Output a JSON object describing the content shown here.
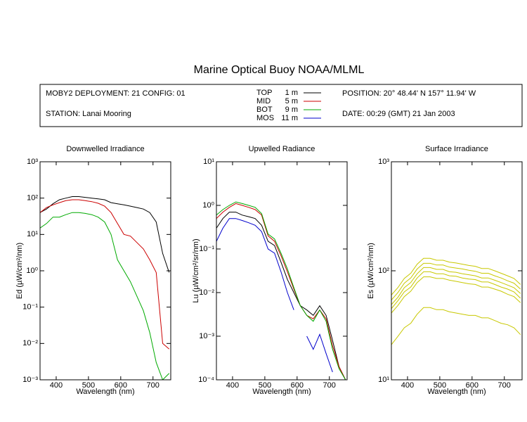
{
  "title": "Marine Optical Buoy NOAA/MLML",
  "info": {
    "deployment": "MOBY2 DEPLOYMENT: 21 CONFIG: 01",
    "station": "STATION: Lanai Mooring",
    "position": "POSITION: 20° 48.44' N   157° 11.94' W",
    "date": "DATE: 00:29 (GMT) 21 Jan 2003"
  },
  "legend": [
    {
      "name": "TOP",
      "depth": "1  m",
      "color": "#000000"
    },
    {
      "name": "MID",
      "depth": "5  m",
      "color": "#cc0000"
    },
    {
      "name": "BOT",
      "depth": "9  m",
      "color": "#00aa00"
    },
    {
      "name": "MOS",
      "depth": "11  m",
      "color": "#0000cc"
    }
  ],
  "chart_data": [
    {
      "type": "line",
      "title": "Downwelled Irradiance",
      "xlabel": "Wavelength (nm)",
      "ylabel": "Ed  (µW/cm²/nm)",
      "log_y": true,
      "xlim": [
        350,
        755
      ],
      "ylim": [
        0.001,
        1000
      ],
      "xticks": [
        400,
        500,
        600,
        700
      ],
      "yticks": [
        {
          "value": 0.001,
          "label": "10⁻³"
        },
        {
          "value": 0.01,
          "label": "10⁻²"
        },
        {
          "value": 0.1,
          "label": "10⁻¹"
        },
        {
          "value": 1,
          "label": "10⁰"
        },
        {
          "value": 10,
          "label": "10¹"
        },
        {
          "value": 100,
          "label": "10²"
        },
        {
          "value": 1000,
          "label": "10³"
        }
      ],
      "x": [
        350,
        370,
        390,
        410,
        430,
        450,
        470,
        490,
        510,
        530,
        550,
        570,
        590,
        610,
        630,
        650,
        670,
        690,
        710,
        730,
        750
      ],
      "series": [
        {
          "color": "#000000",
          "values": [
            40,
            50,
            70,
            90,
            100,
            110,
            110,
            105,
            100,
            95,
            90,
            75,
            70,
            65,
            60,
            55,
            50,
            40,
            22,
            3,
            0.9
          ]
        },
        {
          "color": "#cc0000",
          "values": [
            40,
            55,
            65,
            75,
            85,
            90,
            90,
            85,
            80,
            72,
            60,
            40,
            20,
            10,
            9,
            6,
            4,
            2,
            0.9,
            0.01,
            0.007
          ]
        },
        {
          "color": "#00aa00",
          "values": [
            15,
            20,
            30,
            30,
            35,
            40,
            40,
            38,
            35,
            30,
            22,
            10,
            2,
            1,
            0.5,
            0.2,
            0.08,
            0.02,
            0.003,
            0.001,
            0.0015
          ]
        }
      ]
    },
    {
      "type": "line",
      "title": "Upwelled Radiance",
      "xlabel": "Wavelength (nm)",
      "ylabel": "Lu  (µW/cm²/sr/nm)",
      "log_y": true,
      "xlim": [
        350,
        755
      ],
      "ylim": [
        0.0001,
        10
      ],
      "xticks": [
        400,
        500,
        600,
        700
      ],
      "yticks": [
        {
          "value": 0.0001,
          "label": "10⁻⁴"
        },
        {
          "value": 0.001,
          "label": "10⁻³"
        },
        {
          "value": 0.01,
          "label": "10⁻²"
        },
        {
          "value": 0.1,
          "label": "10⁻¹"
        },
        {
          "value": 1,
          "label": "10⁰"
        },
        {
          "value": 10,
          "label": "10¹"
        }
      ],
      "x": [
        350,
        370,
        390,
        410,
        430,
        450,
        470,
        490,
        510,
        530,
        550,
        570,
        590,
        610,
        630,
        650,
        670,
        690,
        710,
        730,
        750
      ],
      "series": [
        {
          "color": "#000000",
          "values": [
            0.3,
            0.5,
            0.7,
            0.7,
            0.6,
            0.55,
            0.5,
            0.35,
            0.15,
            0.12,
            0.05,
            0.02,
            0.01,
            0.005,
            0.004,
            0.003,
            0.005,
            0.003,
            0.0008,
            0.0002,
            0.0001
          ]
        },
        {
          "color": "#cc0000",
          "values": [
            0.5,
            0.7,
            0.9,
            1.1,
            1.0,
            0.9,
            0.8,
            0.6,
            0.2,
            0.15,
            0.07,
            0.03,
            0.012,
            0.005,
            0.003,
            0.0025,
            0.004,
            0.0025,
            0.0006,
            0.0002,
            0.0001
          ]
        },
        {
          "color": "#00aa00",
          "values": [
            0.6,
            0.8,
            1.0,
            1.2,
            1.1,
            1.0,
            0.9,
            0.65,
            0.22,
            0.17,
            0.08,
            0.035,
            0.013,
            0.005,
            0.003,
            0.0022,
            0.004,
            0.0022,
            0.0005,
            0.00018,
            0.0001
          ]
        },
        {
          "color": "#0000cc",
          "values": [
            0.15,
            0.3,
            0.5,
            0.5,
            0.45,
            0.4,
            0.35,
            0.25,
            0.1,
            0.08,
            0.03,
            0.01,
            0.004,
            null,
            0.001,
            0.0005,
            0.0011,
            0.0004,
            0.00015,
            null,
            null
          ]
        }
      ]
    },
    {
      "type": "line",
      "title": "Surface Irradiance",
      "xlabel": "Wavelength (nm)",
      "ylabel": "Es  (µW/cm²/nm)",
      "log_y": true,
      "xlim": [
        350,
        755
      ],
      "ylim": [
        10,
        1000
      ],
      "xticks": [
        400,
        500,
        600,
        700
      ],
      "yticks": [
        {
          "value": 10,
          "label": "10¹"
        },
        {
          "value": 100,
          "label": "10²"
        },
        {
          "value": 1000,
          "label": "10³"
        }
      ],
      "x": [
        350,
        370,
        390,
        410,
        430,
        450,
        470,
        490,
        510,
        530,
        550,
        570,
        590,
        610,
        630,
        650,
        670,
        690,
        710,
        730,
        750
      ],
      "series": [
        {
          "color": "#c8c800",
          "values": [
            60,
            70,
            85,
            95,
            115,
            130,
            130,
            125,
            125,
            120,
            118,
            115,
            112,
            110,
            105,
            105,
            100,
            95,
            90,
            85,
            75
          ]
        },
        {
          "color": "#c8c800",
          "values": [
            54,
            63,
            77,
            86,
            104,
            117,
            117,
            113,
            113,
            108,
            106,
            104,
            101,
            99,
            95,
            95,
            90,
            86,
            81,
            77,
            68
          ]
        },
        {
          "color": "#c8c800",
          "values": [
            49,
            57,
            70,
            78,
            94,
            107,
            107,
            103,
            103,
            98,
            97,
            94,
            92,
            90,
            86,
            86,
            82,
            78,
            74,
            70,
            62
          ]
        },
        {
          "color": "#c8c800",
          "values": [
            45,
            53,
            64,
            71,
            86,
            98,
            98,
            94,
            94,
            90,
            89,
            86,
            84,
            83,
            79,
            79,
            75,
            71,
            68,
            64,
            56
          ]
        },
        {
          "color": "#c8c800",
          "values": [
            41,
            48,
            58,
            65,
            78,
            88,
            88,
            85,
            85,
            82,
            80,
            78,
            76,
            75,
            71,
            71,
            68,
            65,
            61,
            58,
            51
          ]
        },
        {
          "color": "#c8c800",
          "values": [
            21,
            25,
            30,
            33,
            40,
            46,
            46,
            44,
            44,
            42,
            41,
            40,
            39,
            39,
            37,
            37,
            35,
            33,
            32,
            30,
            26
          ]
        }
      ]
    }
  ]
}
